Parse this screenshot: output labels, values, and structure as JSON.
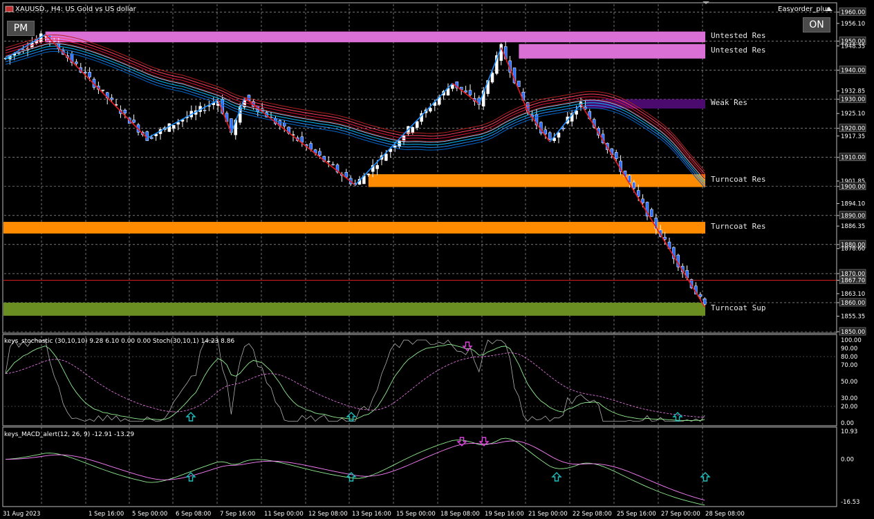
{
  "header": {
    "symbol_title": "XAUUSD., H4:  US Gold vs US dollar",
    "ea_name": "Easyorder_plus"
  },
  "buttons": {
    "pm_label": "PM",
    "on_label": "ON"
  },
  "zones": [
    {
      "label": "Untested Res",
      "price_top": 1953.3,
      "price_bottom": 1949.6,
      "from_bar": 9,
      "color": "#da70d6"
    },
    {
      "label": "Untested Res",
      "price_top": 1949.0,
      "price_bottom": 1944.0,
      "from_bar": 116,
      "color": "#da70d6"
    },
    {
      "label": "Weak Res",
      "price_top": 1930.0,
      "price_bottom": 1926.8,
      "from_bar": 131,
      "color": "#4b0a6e"
    },
    {
      "label": "Turncoat Res",
      "price_top": 1904.2,
      "price_bottom": 1899.8,
      "from_bar": 82,
      "color": "#ff8c00"
    },
    {
      "label": "Turncoat Res",
      "price_top": 1887.8,
      "price_bottom": 1883.8,
      "from_bar": 0,
      "color": "#ff8c00"
    },
    {
      "label": "Turncoat Sup",
      "price_top": 1860.0,
      "price_bottom": 1855.5,
      "from_bar": 0,
      "color": "#6b8e23"
    }
  ],
  "price_axis": {
    "labels": [
      "1960.00",
      "1956.10",
      "1950.00",
      "1948.35",
      "1940.00",
      "1932.85",
      "1930.00",
      "1925.10",
      "1920.00",
      "1917.35",
      "1910.00",
      "1901.85",
      "1900.00",
      "1894.10",
      "1890.00",
      "1886.35",
      "1880.00",
      "1878.60",
      "1870.00",
      "1867.70",
      "1863.10",
      "1860.00",
      "1855.35",
      "1850.00"
    ],
    "boxed": [
      "1960.00",
      "1950.00",
      "1940.00",
      "1930.00",
      "1920.00",
      "1910.00",
      "1900.00",
      "1890.00",
      "1880.00",
      "1870.00",
      "1860.00",
      "1850.00"
    ],
    "current_price": "1867.70",
    "range": [
      1850.0,
      1961.3
    ]
  },
  "time_axis": {
    "labels": [
      "31 Aug 2023",
      "1 Sep 16:00",
      "5 Sep 00:00",
      "6 Sep 08:00",
      "7 Sep 16:00",
      "11 Sep 00:00",
      "12 Sep 08:00",
      "13 Sep 16:00",
      "15 Sep 00:00",
      "18 Sep 08:00",
      "19 Sep 16:00",
      "21 Sep 00:00",
      "22 Sep 08:00",
      "25 Sep 16:00",
      "27 Sep 00:00",
      "28 Sep 08:00"
    ]
  },
  "stochastic": {
    "label": "keys_stochastic (30,10,10) 9.28 6.10 0.00 0.00 Stoch(30,10,1) 14.23 8.86",
    "axis_labels": [
      "100.00",
      "90.00",
      "80.00",
      "70.00",
      "50.00",
      "30.00",
      "20.00",
      "0.00"
    ]
  },
  "macd": {
    "label": "keys_MACD_alert(12, 26, 9) -12.91 -13.29",
    "axis_labels": [
      "10.93",
      "0.00",
      "-16.53"
    ]
  },
  "colors": {
    "bull_candle": "#ffffff",
    "bear_candle": "#2b6fff",
    "zigzag_down": "#e8191f",
    "zigzag_up": "#1e90ff",
    "ma_red": "#dc143c",
    "ma_blue": "#00bfff",
    "up_arrow": "#20c0c0",
    "down_arrow": "#e040e0"
  },
  "chart_data": {
    "type": "candlestick",
    "symbol": "XAUUSD.",
    "timeframe": "H4",
    "ylim": [
      1850.0,
      1961.3
    ],
    "zigzag": [
      {
        "bar": 0,
        "price": 1944
      },
      {
        "bar": 9,
        "price": 1952.3
      },
      {
        "bar": 32,
        "price": 1916.6
      },
      {
        "bar": 48,
        "price": 1929.7
      },
      {
        "bar": 51,
        "price": 1918.5
      },
      {
        "bar": 54,
        "price": 1930.5
      },
      {
        "bar": 79,
        "price": 1900.5
      },
      {
        "bar": 101,
        "price": 1935.5
      },
      {
        "bar": 107,
        "price": 1928.4
      },
      {
        "bar": 112,
        "price": 1947.8
      },
      {
        "bar": 118,
        "price": 1925.8
      },
      {
        "bar": 123,
        "price": 1915.3
      },
      {
        "bar": 130,
        "price": 1928.4
      },
      {
        "bar": 158,
        "price": 1858.5
      }
    ]
  }
}
